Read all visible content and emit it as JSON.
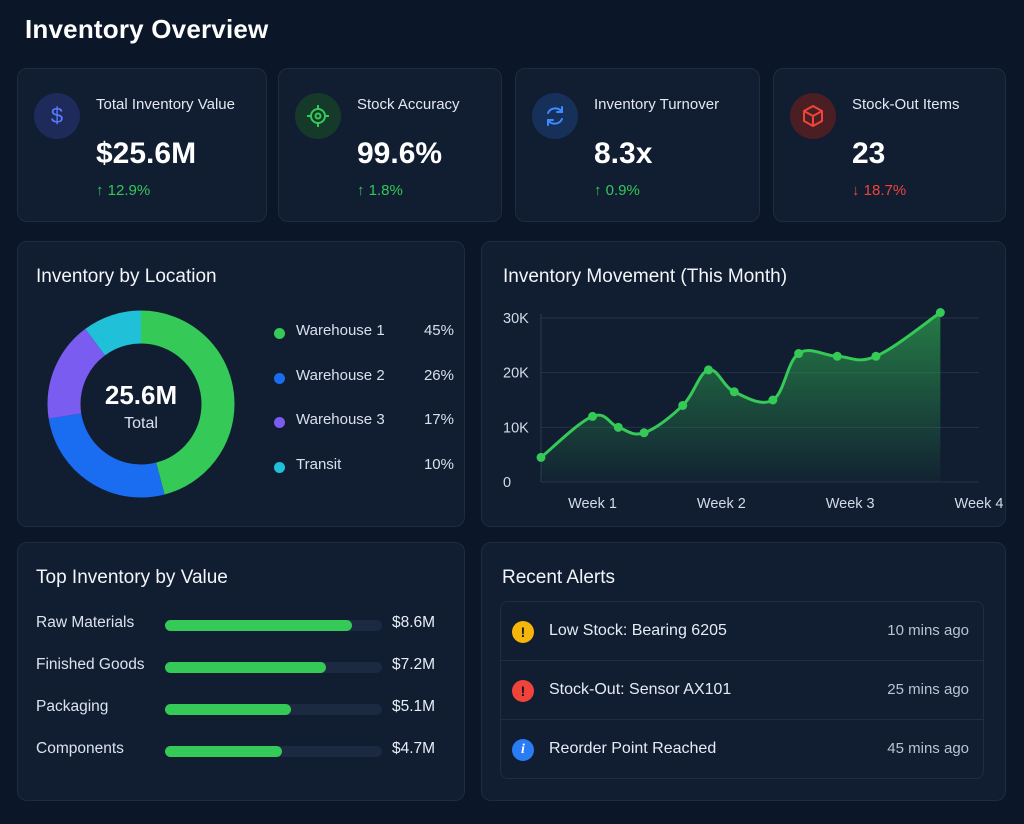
{
  "header": {
    "title": "Inventory Overview"
  },
  "kpis": [
    {
      "label": "Total Inventory Value",
      "value": "$25.6M",
      "delta": "↑ 12.9%",
      "trend": "up",
      "icon": "dollar-icon",
      "icon_color": "#5b7bff",
      "icon_bg": "#1d2a5a"
    },
    {
      "label": "Stock Accuracy",
      "value": "99.6%",
      "delta": "↑ 1.8%",
      "trend": "up",
      "icon": "target-icon",
      "icon_color": "#35c957",
      "icon_bg": "#163a2a"
    },
    {
      "label": "Inventory Turnover",
      "value": "8.3x",
      "delta": "↑ 0.9%",
      "trend": "up",
      "icon": "refresh-icon",
      "icon_color": "#3b8cff",
      "icon_bg": "#17305a"
    },
    {
      "label": "Stock-Out Items",
      "value": "23",
      "delta": "↓ 18.7%",
      "trend": "down",
      "icon": "box-icon",
      "icon_color": "#f0443a",
      "icon_bg": "#4a1e22"
    }
  ],
  "location": {
    "title": "Inventory by Location",
    "center_value": "25.6M",
    "center_label": "Total",
    "items": [
      {
        "name": "Warehouse 1",
        "pct": "45%",
        "value": 45,
        "color": "#35c957"
      },
      {
        "name": "Warehouse 2",
        "pct": "26%",
        "value": 26,
        "color": "#1a6df0"
      },
      {
        "name": "Warehouse 3",
        "pct": "17%",
        "value": 17,
        "color": "#7b5cf0"
      },
      {
        "name": "Transit",
        "pct": "10%",
        "value": 10,
        "color": "#20c0d8"
      }
    ]
  },
  "movement": {
    "title": "Inventory Movement (This Month)"
  },
  "chart_data": {
    "type": "area",
    "title": "Inventory Movement (This Month)",
    "x": [
      0.0,
      0.4,
      0.6,
      0.8,
      1.1,
      1.3,
      1.5,
      1.8,
      2.0,
      2.3,
      2.6,
      3.1
    ],
    "values": [
      4500,
      12000,
      10000,
      9000,
      14000,
      20500,
      16500,
      15000,
      23500,
      23000,
      23000,
      31000
    ],
    "categories": [
      "Week 1",
      "Week 2",
      "Week 3",
      "Week 4"
    ],
    "category_positions": [
      0.4,
      1.4,
      2.4,
      3.4
    ],
    "y_ticks": [
      "0",
      "10K",
      "20K",
      "30K"
    ],
    "ylim": [
      0,
      30000
    ],
    "xlim": [
      0.0,
      3.4
    ],
    "color": "#35c957",
    "grid": true
  },
  "top_value": {
    "title": "Top Inventory by Value",
    "items": [
      {
        "name": "Raw Materials",
        "value": "$8.6M",
        "fraction": 0.86
      },
      {
        "name": "Finished Goods",
        "value": "$7.2M",
        "fraction": 0.74
      },
      {
        "name": "Packaging",
        "value": "$5.1M",
        "fraction": 0.58
      },
      {
        "name": "Components",
        "value": "$4.7M",
        "fraction": 0.54
      }
    ]
  },
  "alerts": {
    "title": "Recent Alerts",
    "items": [
      {
        "text": "Low Stock: Bearing 6205",
        "time": "10 mins ago",
        "icon": "warning-icon",
        "glyph": "!",
        "color": "#f5b50a"
      },
      {
        "text": "Stock-Out: Sensor AX101",
        "time": "25 mins ago",
        "icon": "error-icon",
        "glyph": "!",
        "color": "#f0443a"
      },
      {
        "text": "Reorder Point Reached",
        "time": "45 mins ago",
        "icon": "info-icon",
        "glyph": "i",
        "color": "#2a7cf5"
      }
    ]
  }
}
